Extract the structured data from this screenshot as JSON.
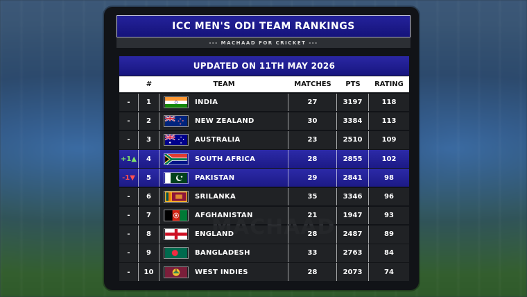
{
  "title": "ICC MEN'S ODI TEAM RANKINGS",
  "subtitle": "--- MACHAAD FOR CRICKET ---",
  "updated": "UPDATED ON 11TH MAY 2026",
  "watermark": "MACHAAD",
  "columns": [
    "",
    "#",
    "TEAM",
    "MATCHES",
    "PTS",
    "RATING"
  ],
  "colors": {
    "highlight": "#1c1a86",
    "up": "#7ee06a",
    "down": "#ff5050"
  },
  "rows": [
    {
      "move": "-",
      "rank": "1",
      "team": "INDIA",
      "flag": "india-flag-icon",
      "matches": "27",
      "pts": "3197",
      "rating": "118"
    },
    {
      "move": "-",
      "rank": "2",
      "team": "NEW ZEALAND",
      "flag": "new-zealand-flag-icon",
      "matches": "30",
      "pts": "3384",
      "rating": "113"
    },
    {
      "move": "-",
      "rank": "3",
      "team": "AUSTRALIA",
      "flag": "australia-flag-icon",
      "matches": "23",
      "pts": "2510",
      "rating": "109"
    },
    {
      "move": "+1▲",
      "rank": "4",
      "team": "SOUTH AFRICA",
      "flag": "south-africa-flag-icon",
      "matches": "28",
      "pts": "2855",
      "rating": "102"
    },
    {
      "move": "-1▼",
      "rank": "5",
      "team": "PAKISTAN",
      "flag": "pakistan-flag-icon",
      "matches": "29",
      "pts": "2841",
      "rating": "98"
    },
    {
      "move": "-",
      "rank": "6",
      "team": "SRILANKA",
      "flag": "sri-lanka-flag-icon",
      "matches": "35",
      "pts": "3346",
      "rating": "96"
    },
    {
      "move": "-",
      "rank": "7",
      "team": "AFGHANISTAN",
      "flag": "afghanistan-flag-icon",
      "matches": "21",
      "pts": "1947",
      "rating": "93"
    },
    {
      "move": "-",
      "rank": "8",
      "team": "ENGLAND",
      "flag": "england-flag-icon",
      "matches": "28",
      "pts": "2487",
      "rating": "89"
    },
    {
      "move": "-",
      "rank": "9",
      "team": "BANGLADESH",
      "flag": "bangladesh-flag-icon",
      "matches": "33",
      "pts": "2763",
      "rating": "84"
    },
    {
      "move": "-",
      "rank": "10",
      "team": "WEST INDIES",
      "flag": "west-indies-flag-icon",
      "matches": "28",
      "pts": "2073",
      "rating": "74"
    }
  ]
}
